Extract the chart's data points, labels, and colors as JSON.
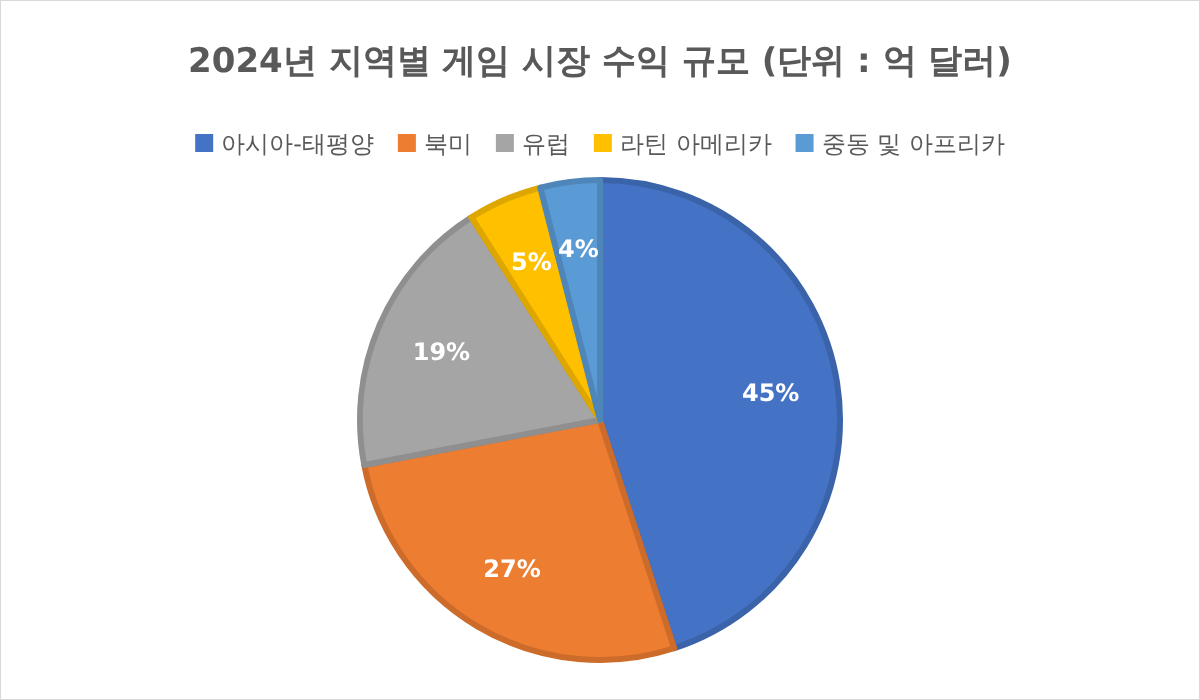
{
  "chart_data": {
    "type": "pie",
    "title": "2024년 지역별 게임 시장 수익 규모 (단위 : 억 달러)",
    "categories": [
      "아시아-태평양",
      "북미",
      "유럽",
      "라틴 아메리카",
      "중동 및 아프리카"
    ],
    "values": [
      45,
      27,
      19,
      5,
      4
    ],
    "colors": [
      "#4472c4",
      "#ed7d31",
      "#a5a5a5",
      "#ffc000",
      "#5b9bd5"
    ],
    "value_labels": [
      "45%",
      "27%",
      "19%",
      "5%",
      "4%"
    ],
    "legend": "top"
  }
}
